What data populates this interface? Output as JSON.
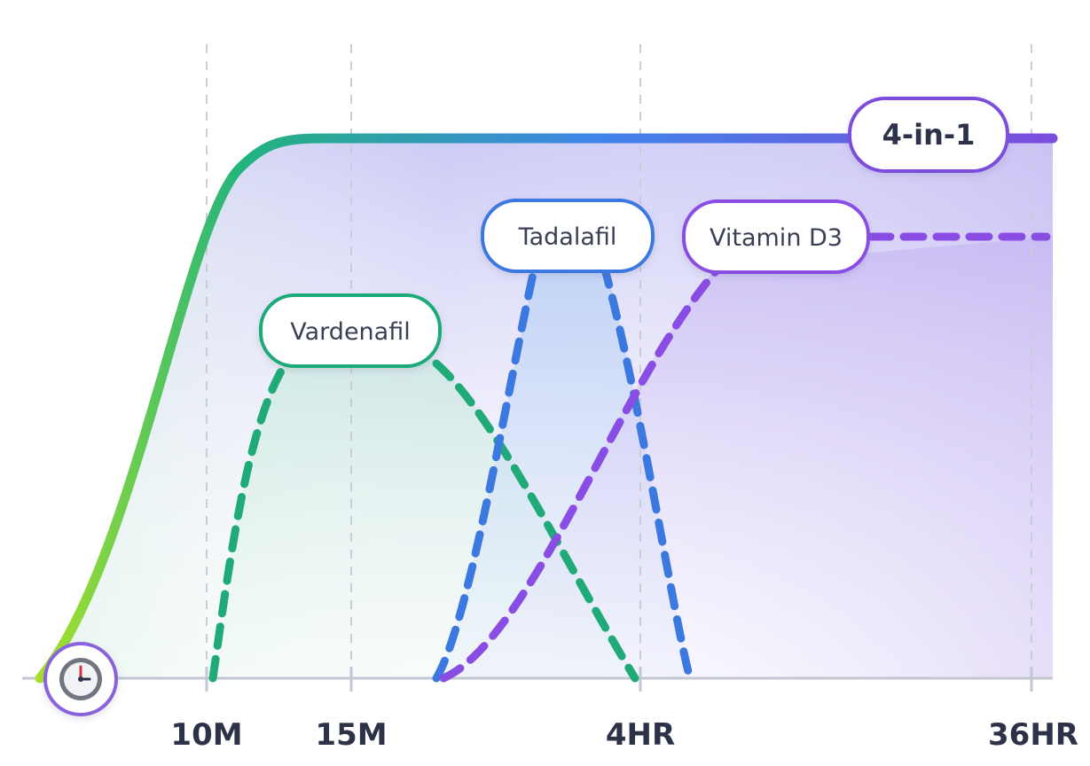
{
  "chart_data": {
    "type": "line",
    "title": "",
    "xlabel": "",
    "ylabel": "",
    "x_ticks": [
      "10M",
      "15M",
      "4HR",
      "36HR"
    ],
    "grid": "vertical-dashed",
    "series": [
      {
        "name": "4-in-1",
        "style": "solid",
        "color": "#7c4ddd",
        "gradient": [
          "#a8e12a",
          "#22b37e",
          "#3f84e8",
          "#7c4ddd"
        ],
        "level": 1.0
      },
      {
        "name": "Vardenafil",
        "style": "dashed",
        "color": "#1faa78",
        "level": 0.62
      },
      {
        "name": "Tadalafil",
        "style": "dashed",
        "color": "#3b78e0",
        "level": 0.78
      },
      {
        "name": "Vitamin D3",
        "style": "dashed",
        "color": "#8a4de3",
        "level": 0.81
      }
    ]
  },
  "icons": {
    "axis_origin": "clock-icon"
  }
}
